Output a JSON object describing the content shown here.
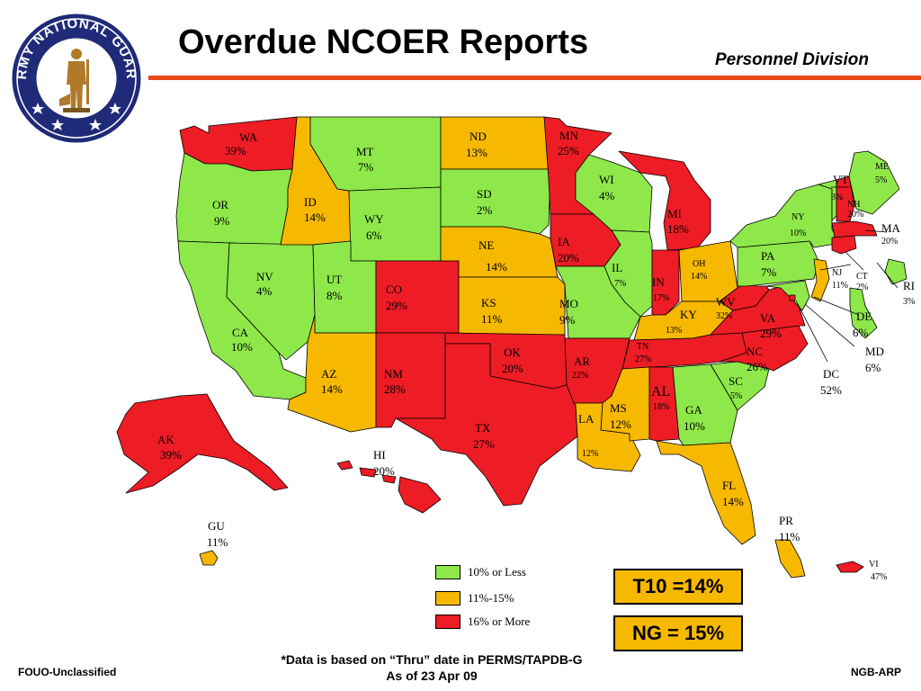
{
  "header": {
    "title": "Overdue NCOER Reports",
    "division": "Personnel Division",
    "seal_text": "ARMY NATIONAL GUARD"
  },
  "colors": {
    "low": "#8ee84a",
    "mid": "#f7b800",
    "high": "#ee1c25",
    "rule": "#e84a1a",
    "seal_ring": "#1f2a78"
  },
  "legend": [
    {
      "label": "10% or Less",
      "color": "#8ee84a"
    },
    {
      "label": "11%-15%",
      "color": "#f7b800"
    },
    {
      "label": "16% or More",
      "color": "#ee1c25"
    }
  ],
  "states": {
    "WA": {
      "abbr": "WA",
      "value": "39%"
    },
    "OR": {
      "abbr": "OR",
      "value": "9%"
    },
    "CA": {
      "abbr": "CA",
      "value": "10%"
    },
    "NV": {
      "abbr": "NV",
      "value": "4%"
    },
    "ID": {
      "abbr": "ID",
      "value": "14%"
    },
    "MT": {
      "abbr": "MT",
      "value": "7%"
    },
    "WY": {
      "abbr": "WY",
      "value": "6%"
    },
    "UT": {
      "abbr": "UT",
      "value": "8%"
    },
    "AZ": {
      "abbr": "AZ",
      "value": "14%"
    },
    "CO": {
      "abbr": "CO",
      "value": "29%"
    },
    "NM": {
      "abbr": "NM",
      "value": "28%"
    },
    "ND": {
      "abbr": "ND",
      "value": "13%"
    },
    "SD": {
      "abbr": "SD",
      "value": "2%"
    },
    "NE": {
      "abbr": "NE",
      "value": "14%"
    },
    "KS": {
      "abbr": "KS",
      "value": "11%"
    },
    "OK": {
      "abbr": "OK",
      "value": "20%"
    },
    "TX": {
      "abbr": "TX",
      "value": "27%"
    },
    "MN": {
      "abbr": "MN",
      "value": "25%"
    },
    "IA": {
      "abbr": "IA",
      "value": "20%"
    },
    "MO": {
      "abbr": "MO",
      "value": "9%"
    },
    "AR": {
      "abbr": "AR",
      "value": "22%"
    },
    "LA": {
      "abbr": "LA",
      "value": "12%"
    },
    "WI": {
      "abbr": "WI",
      "value": "4%"
    },
    "IL": {
      "abbr": "IL",
      "value": "7%"
    },
    "MI": {
      "abbr": "MI",
      "value": "18%"
    },
    "IN": {
      "abbr": "IN",
      "value": "17%"
    },
    "OH": {
      "abbr": "OH",
      "value": "14%"
    },
    "KY": {
      "abbr": "KY",
      "value": "13%"
    },
    "TN": {
      "abbr": "TN",
      "value": "27%"
    },
    "MS": {
      "abbr": "MS",
      "value": "12%"
    },
    "AL": {
      "abbr": "AL",
      "value": "18%"
    },
    "GA": {
      "abbr": "GA",
      "value": "10%"
    },
    "FL": {
      "abbr": "FL",
      "value": "14%"
    },
    "SC": {
      "abbr": "SC",
      "value": "5%"
    },
    "NC": {
      "abbr": "NC",
      "value": "26%"
    },
    "VA": {
      "abbr": "VA",
      "value": "29%"
    },
    "WV": {
      "abbr": "WV",
      "value": "32%"
    },
    "PA": {
      "abbr": "PA",
      "value": "7%"
    },
    "NY": {
      "abbr": "NY",
      "value": "10%"
    },
    "VT": {
      "abbr": "VT",
      "value": "3%"
    },
    "NH": {
      "abbr": "NH",
      "value": "20%"
    },
    "ME": {
      "abbr": "ME",
      "value": "5%"
    },
    "MA": {
      "abbr": "MA",
      "value": "20%"
    },
    "RI": {
      "abbr": "RI",
      "value": "3%"
    },
    "CT": {
      "abbr": "CT",
      "value": "2%"
    },
    "NJ": {
      "abbr": "NJ",
      "value": "11%"
    },
    "DE": {
      "abbr": "DE",
      "value": "6%"
    },
    "MD": {
      "abbr": "MD",
      "value": "6%"
    },
    "DC": {
      "abbr": "DC",
      "value": "52%"
    },
    "AK": {
      "abbr": "AK",
      "value": "39%"
    },
    "HI": {
      "abbr": "HI",
      "value": "20%"
    },
    "GU": {
      "abbr": "GU",
      "value": "11%"
    },
    "PR": {
      "abbr": "PR",
      "value": "11%"
    },
    "VI": {
      "abbr": "VI",
      "value": "47%"
    }
  },
  "totals": {
    "t10": "T10 =14%",
    "ng": "NG = 15%"
  },
  "footer": {
    "note_line1": "*Data is based on “Thru” date in PERMS/TAPDB-G",
    "note_line2": "As of  23 Apr 09",
    "left": "FOUO-Unclassified",
    "right": "NGB-ARP"
  }
}
